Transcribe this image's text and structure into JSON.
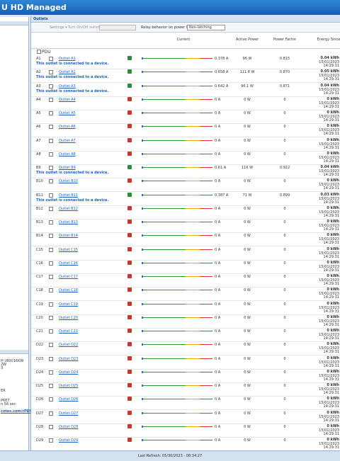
{
  "header": {
    "title": "U HD Managed"
  },
  "sidebar": {
    "lines": [
      "H UNV/16KW",
      "2W",
      "3",
      "ER",
      "P6E7",
      "n 56 sec"
    ],
    "link": "cotes.com/rPDU"
  },
  "tab": "Outlets",
  "toolbar": {
    "settings": "Settings ▾",
    "turn": "Turn On/Off outlets:",
    "relay": "Relay behavior on power loss:",
    "relay_value": "Non-latching"
  },
  "table": {
    "columns": [
      "Current",
      "Active Power",
      "Power Factor",
      "Energy Since"
    ],
    "group": "PDU",
    "rows": [
      {
        "id": "A1",
        "name": "Outlet A1",
        "current": "0.378 A",
        "power": "96 W",
        "pf": "0.815",
        "energy": "0.04 kWh",
        "date": "15/01/2023",
        "time": "14:29:31",
        "note": "This outlet is connected to a device."
      },
      {
        "id": "A2",
        "name": "Outlet A2",
        "current": "0.658 A",
        "power": "111.8 W",
        "pf": "0.870",
        "energy": "0.05 kWh",
        "date": "15/01/2023",
        "time": "14:29:31",
        "note": "This outlet is connected to a device."
      },
      {
        "id": "A3",
        "name": "Outlet A3",
        "current": "0.642 A",
        "power": "96.1 W",
        "pf": "0.871",
        "energy": "0.04 kWh",
        "date": "15/01/2023",
        "time": "14:29:31",
        "note": "This outlet is connected to a device."
      },
      {
        "id": "A4",
        "name": "Outlet A4",
        "current": "0 A",
        "power": "0 W",
        "pf": "0",
        "energy": "0 kWh",
        "date": "15/01/2023",
        "time": "14:29:31"
      },
      {
        "id": "A5",
        "name": "Outlet A5",
        "current": "0 A",
        "power": "0 W",
        "pf": "0",
        "energy": "0 kWh",
        "date": "15/01/2023",
        "time": "14:29:31"
      },
      {
        "id": "A6",
        "name": "Outlet A6",
        "current": "0 A",
        "power": "0 W",
        "pf": "0",
        "energy": "0 kWh",
        "date": "15/01/2023",
        "time": "14:29:31"
      },
      {
        "id": "A7",
        "name": "Outlet A7",
        "current": "0 A",
        "power": "0 W",
        "pf": "0",
        "energy": "0 kWh",
        "date": "15/01/2023",
        "time": "14:29:31"
      },
      {
        "id": "A8",
        "name": "Outlet A8",
        "current": "0 A",
        "power": "0 W",
        "pf": "0",
        "energy": "0 kWh",
        "date": "15/01/2023",
        "time": "14:29:31"
      },
      {
        "id": "B9",
        "name": "Outlet B9",
        "current": "0.61 A",
        "power": "116 W",
        "pf": "0.922",
        "energy": "0.04 kWh",
        "date": "15/01/2023",
        "time": "14:29:31",
        "note": "This outlet is connected to a device."
      },
      {
        "id": "B10",
        "name": "Outlet B10",
        "current": "0 A",
        "power": "0 W",
        "pf": "0",
        "energy": "0 kWh",
        "date": "15/01/2023",
        "time": "14:29:31"
      },
      {
        "id": "B11",
        "name": "Outlet B11",
        "current": "0.387 A",
        "power": "71 W",
        "pf": "0.899",
        "energy": "0.03 kWh",
        "date": "15/01/2023",
        "time": "14:29:31",
        "note": "This outlet is connected to a device."
      },
      {
        "id": "B12",
        "name": "Outlet B12",
        "current": "0 A",
        "power": "0 W",
        "pf": "0",
        "energy": "0 kWh",
        "date": "15/01/2023",
        "time": "14:29:31"
      },
      {
        "id": "B13",
        "name": "Outlet B13",
        "current": "0 A",
        "power": "0 W",
        "pf": "0",
        "energy": "0 kWh",
        "date": "15/01/2023",
        "time": "14:29:31"
      },
      {
        "id": "B14",
        "name": "Outlet B14",
        "current": "0 A",
        "power": "0 W",
        "pf": "0",
        "energy": "0 kWh",
        "date": "15/01/2023",
        "time": "14:29:31"
      },
      {
        "id": "C15",
        "name": "Outlet C15",
        "current": "0 A",
        "power": "0 W",
        "pf": "0",
        "energy": "0 kWh",
        "date": "15/01/2023",
        "time": "14:29:31"
      },
      {
        "id": "C16",
        "name": "Outlet C16",
        "current": "0 A",
        "power": "0 W",
        "pf": "0",
        "energy": "0 kWh",
        "date": "15/01/2023",
        "time": "14:29:31"
      },
      {
        "id": "C17",
        "name": "Outlet C17",
        "current": "0 A",
        "power": "0 W",
        "pf": "0",
        "energy": "0 kWh",
        "date": "15/01/2023",
        "time": "14:29:31"
      },
      {
        "id": "C18",
        "name": "Outlet C18",
        "current": "0 A",
        "power": "0 W",
        "pf": "0",
        "energy": "0 kWh",
        "date": "15/01/2023",
        "time": "14:29:31"
      },
      {
        "id": "C19",
        "name": "Outlet C19",
        "current": "0 A",
        "power": "0 W",
        "pf": "0",
        "energy": "0 kWh",
        "date": "15/01/2023",
        "time": "14:29:31"
      },
      {
        "id": "C20",
        "name": "Outlet C20",
        "current": "0 A",
        "power": "0 W",
        "pf": "0",
        "energy": "0 kWh",
        "date": "15/01/2023",
        "time": "14:29:31"
      },
      {
        "id": "C21",
        "name": "Outlet C21",
        "current": "0 A",
        "power": "0 W",
        "pf": "0",
        "energy": "0 kWh",
        "date": "15/01/2023",
        "time": "14:29:31"
      },
      {
        "id": "D22",
        "name": "Outlet D22",
        "current": "0 A",
        "power": "0 W",
        "pf": "0",
        "energy": "0 kWh",
        "date": "15/01/2023",
        "time": "14:29:31"
      },
      {
        "id": "D23",
        "name": "Outlet D23",
        "current": "0 A",
        "power": "0 W",
        "pf": "0",
        "energy": "0 kWh",
        "date": "15/01/2023",
        "time": "14:29:31"
      },
      {
        "id": "D24",
        "name": "Outlet D24",
        "current": "0 A",
        "power": "0 W",
        "pf": "0",
        "energy": "0 kWh",
        "date": "15/01/2023",
        "time": "14:29:31"
      },
      {
        "id": "D25",
        "name": "Outlet D25",
        "current": "0 A",
        "power": "0 W",
        "pf": "0",
        "energy": "0 kWh",
        "date": "15/01/2023",
        "time": "14:29:31"
      },
      {
        "id": "D26",
        "name": "Outlet D26",
        "current": "0 A",
        "power": "0 W",
        "pf": "0",
        "energy": "0 kWh",
        "date": "15/01/2023",
        "time": "14:29:31"
      },
      {
        "id": "D27",
        "name": "Outlet D27",
        "current": "0 A",
        "power": "0 W",
        "pf": "0",
        "energy": "0 kWh",
        "date": "15/01/2023",
        "time": "14:29:31"
      },
      {
        "id": "D28",
        "name": "Outlet D28",
        "current": "0 A",
        "power": "0 W",
        "pf": "0",
        "energy": "0 kWh",
        "date": "15/01/2023",
        "time": "14:29:31"
      },
      {
        "id": "D29",
        "name": "Outlet D29",
        "current": "0 A",
        "power": "0 W",
        "pf": "0",
        "energy": "0 kWh",
        "date": "15/01/2023",
        "time": "14:29:31"
      }
    ]
  },
  "footer": "Last Refresh: 05/30/2023 - 08:34:27"
}
